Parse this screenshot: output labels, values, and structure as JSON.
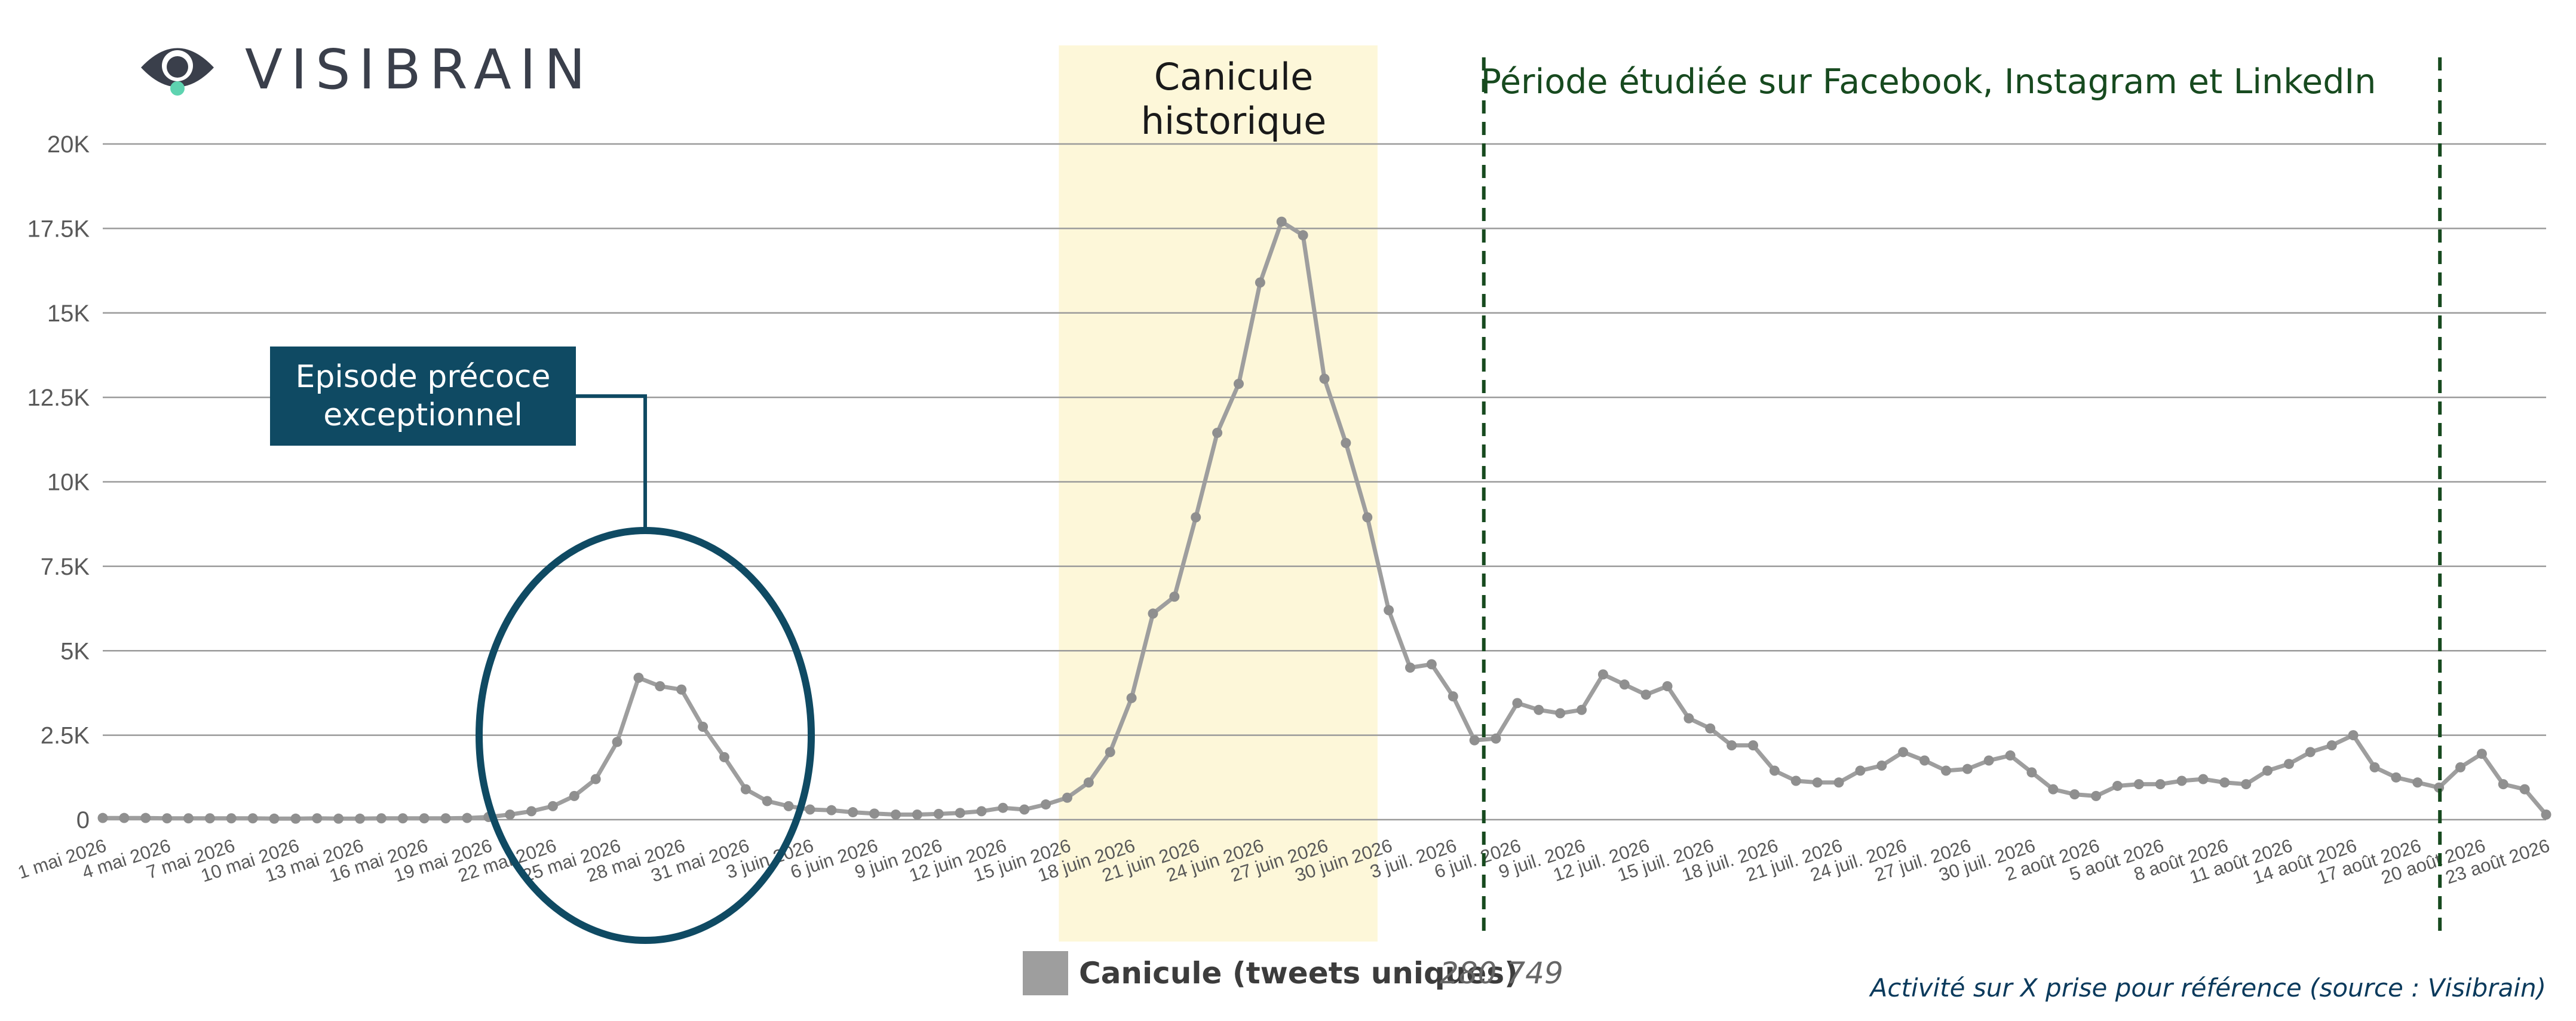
{
  "brand": {
    "name": "VISIBRAIN"
  },
  "colors": {
    "line": "#9e9e9e",
    "marker": "#8f8f8f",
    "grid": "#9a9a9a",
    "heat_band": "#fdf7d9",
    "period_line": "#174a1f",
    "episode_box": "#0f4a63",
    "episode_circle": "#0f4a63"
  },
  "annotations": {
    "heat_wave": [
      "Canicule",
      "historique"
    ],
    "period": "Période étudiée sur Facebook, Instagram et LinkedIn",
    "episode": [
      "Episode précoce",
      "exceptionnel"
    ]
  },
  "legend": {
    "label": "Canicule (tweets uniques)",
    "total": "280 749"
  },
  "source": "Activité sur X prise pour référence (source : Visibrain)",
  "chart_data": {
    "type": "line",
    "title": "",
    "xlabel": "",
    "ylabel": "",
    "ylim": [
      0,
      20000
    ],
    "y_ticks": [
      "0",
      "2.5K",
      "5K",
      "7.5K",
      "10K",
      "12.5K",
      "15K",
      "17.5K",
      "20K"
    ],
    "x_tick_labels": [
      "1 mai 2026",
      "4 mai 2026",
      "7 mai 2026",
      "10 mai 2026",
      "13 mai 2026",
      "16 mai 2026",
      "19 mai 2026",
      "22 mai 2026",
      "25 mai 2026",
      "28 mai 2026",
      "31 mai 2026",
      "3 juin 2026",
      "6 juin 2026",
      "9 juin 2026",
      "12 juin 2026",
      "15 juin 2026",
      "18 juin 2026",
      "21 juin 2026",
      "24 juin 2026",
      "27 juin 2026",
      "30 juin 2026",
      "3 juil. 2026",
      "6 juil. 2026",
      "9 juil. 2026",
      "12 juil. 2026",
      "15 juil. 2026",
      "18 juil. 2026",
      "21 juil. 2026",
      "24 juil. 2026",
      "27 juil. 2026",
      "30 juil. 2026",
      "2 août 2026",
      "5 août 2026",
      "8 août 2026",
      "11 août 2026",
      "14 août 2026",
      "17 août 2026",
      "20 août 2026",
      "23 août 2026"
    ],
    "x_start": "2026-05-01",
    "x_end": "2026-08-24",
    "grid": true,
    "legend_position": "bottom",
    "series": [
      {
        "name": "Canicule (tweets uniques)",
        "values": [
          50,
          50,
          50,
          40,
          40,
          40,
          40,
          40,
          30,
          30,
          40,
          30,
          30,
          40,
          40,
          40,
          40,
          50,
          80,
          150,
          250,
          400,
          700,
          1200,
          2300,
          4200,
          3950,
          3850,
          2750,
          1850,
          900,
          550,
          400,
          300,
          280,
          220,
          180,
          150,
          150,
          170,
          200,
          250,
          350,
          300,
          450,
          650,
          1100,
          2000,
          3600,
          6100,
          6600,
          8950,
          11450,
          12900,
          15900,
          17700,
          17300,
          13050,
          11150,
          8950,
          6200,
          4500,
          4600,
          3650,
          2350,
          2400,
          3450,
          3250,
          3150,
          3250,
          4300,
          4000,
          3700,
          3950,
          3000,
          2700,
          2200,
          2200,
          1450,
          1150,
          1100,
          1100,
          1450,
          1600,
          2000,
          1750,
          1450,
          1500,
          1750,
          1900,
          1400,
          900,
          750,
          700,
          1000,
          1050,
          1050,
          1150,
          1200,
          1100,
          1050,
          1450,
          1650,
          2000,
          2200,
          2500,
          1550,
          1250,
          1100,
          950,
          1550,
          1950,
          1050,
          900,
          150
        ]
      }
    ],
    "bands": [
      {
        "label": "Canicule historique",
        "from": "2026-06-15",
        "to": "2026-06-30"
      }
    ],
    "markers": [
      {
        "label": "Période étudiée sur Facebook, Instagram et LinkedIn",
        "from": "2026-07-05",
        "to": "2026-08-19"
      }
    ]
  }
}
